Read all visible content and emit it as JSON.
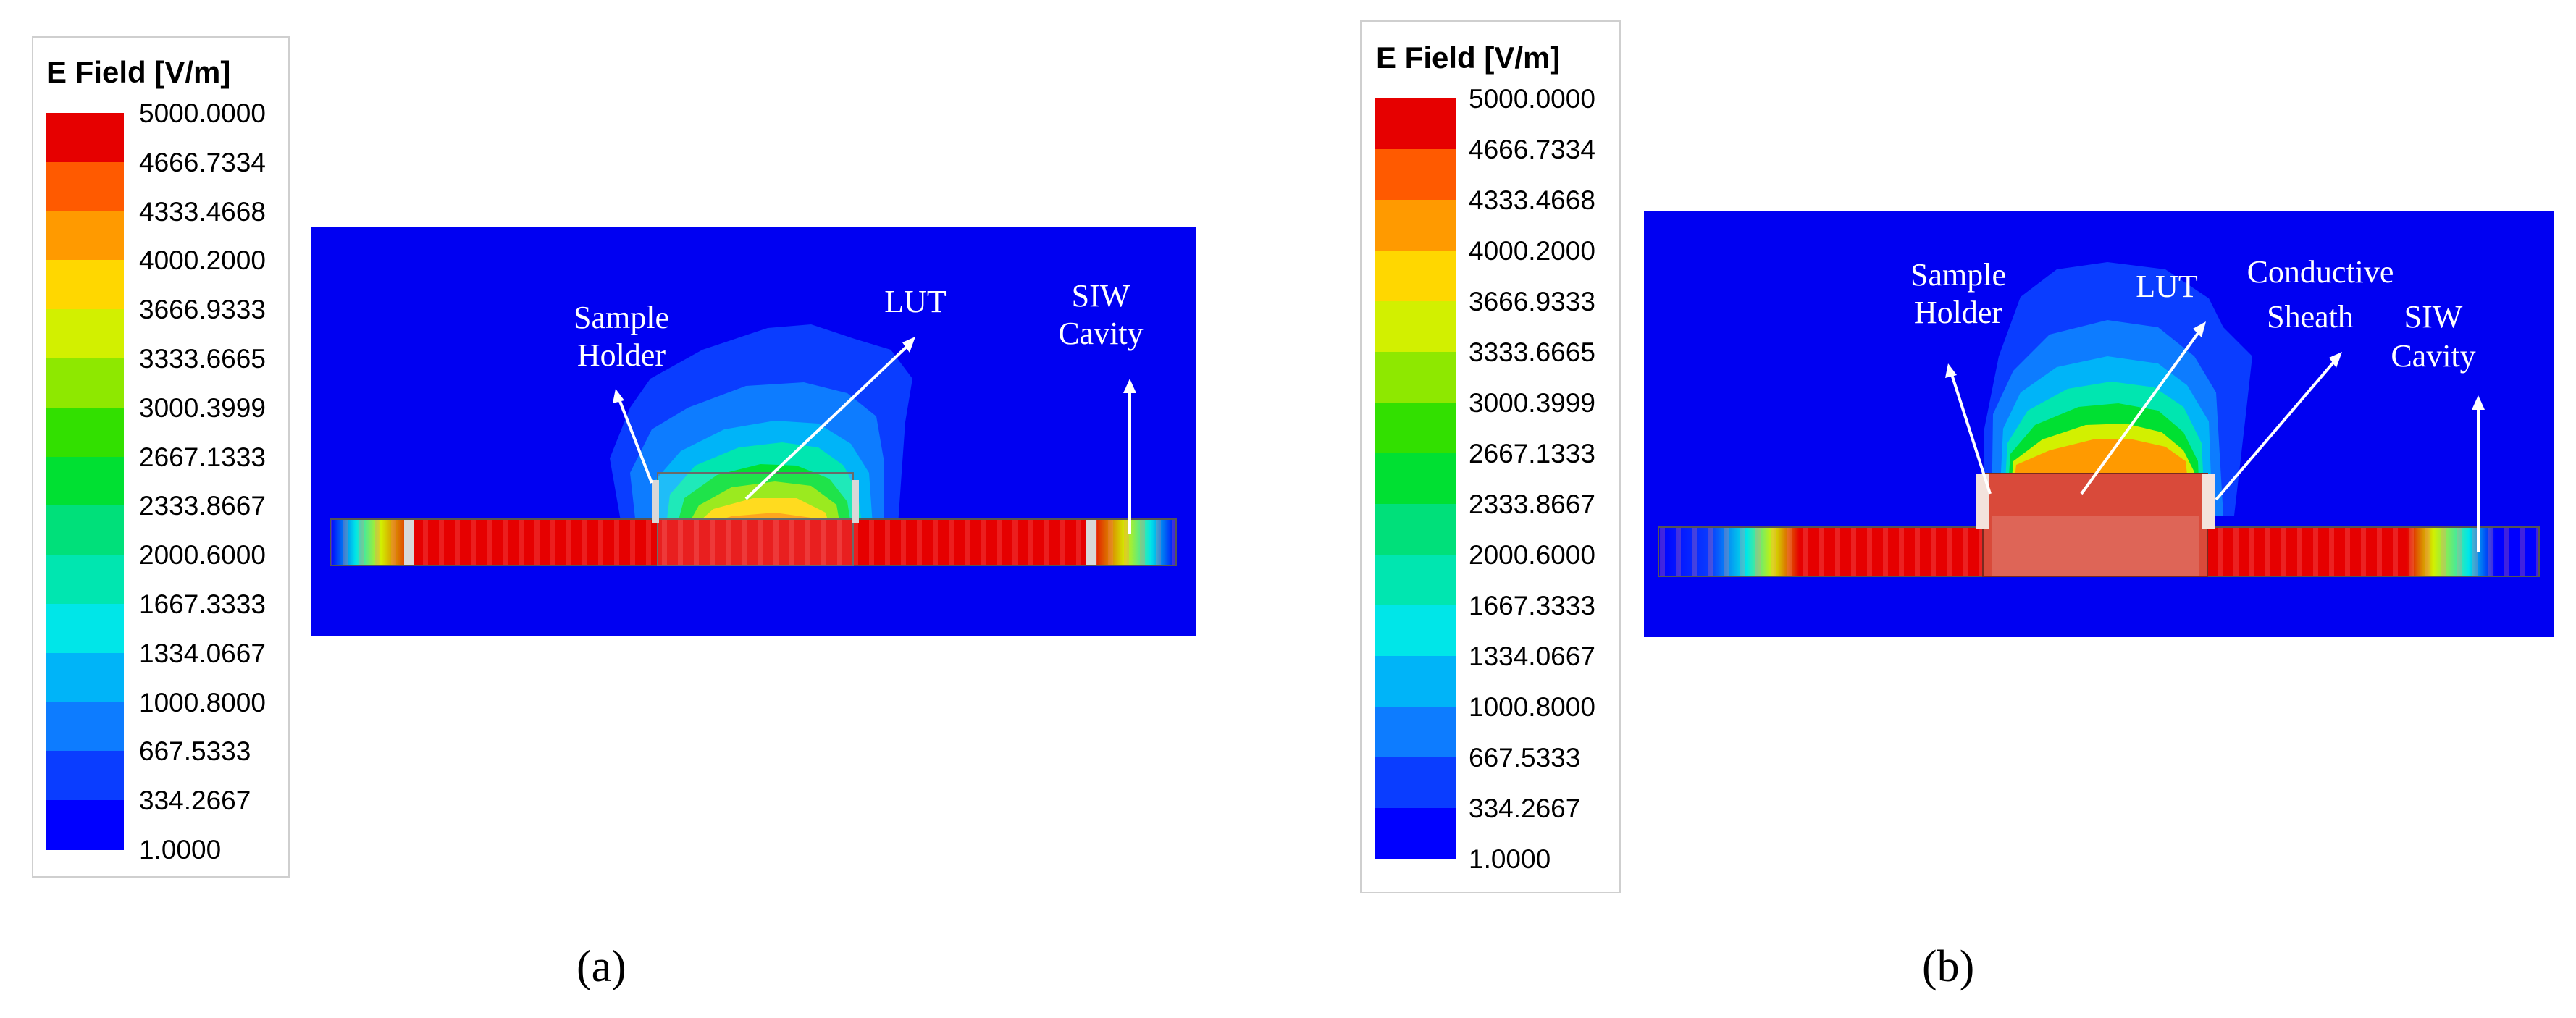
{
  "colors": {
    "background": "#0000f2",
    "scale": [
      "#0000ff",
      "#0a3dff",
      "#0d7cff",
      "#00b4f8",
      "#00e6e8",
      "#00e6b0",
      "#00e07a",
      "#00e032",
      "#32e000",
      "#8ee800",
      "#d2f000",
      "#ffd700",
      "#ff9a00",
      "#ff5a00",
      "#e60000"
    ]
  },
  "panels": [
    {
      "id": "a",
      "legend": {
        "title": "E Field [V/m]",
        "labels": [
          "5000.0000",
          "4666.7334",
          "4333.4668",
          "4000.2000",
          "3666.9333",
          "3333.6665",
          "3000.3999",
          "2667.1333",
          "2333.8667",
          "2000.6000",
          "1667.3333",
          "1334.0667",
          "1000.8000",
          "667.5333",
          "334.2667",
          "1.0000"
        ]
      },
      "annotations": {
        "sample_holder_line1": "Sample",
        "sample_holder_line2": "Holder",
        "lut": "LUT",
        "siw_line1": "SIW",
        "siw_line2": "Cavity"
      },
      "caption": "(a)"
    },
    {
      "id": "b",
      "legend": {
        "title": "E Field [V/m]",
        "labels": [
          "5000.0000",
          "4666.7334",
          "4333.4668",
          "4000.2000",
          "3666.9333",
          "3333.6665",
          "3000.3999",
          "2667.1333",
          "2333.8667",
          "2000.6000",
          "1667.3333",
          "1334.0667",
          "1000.8000",
          "667.5333",
          "334.2667",
          "1.0000"
        ]
      },
      "annotations": {
        "sample_holder_line1": "Sample",
        "sample_holder_line2": "Holder",
        "lut": "LUT",
        "sheath_line1": "Conductive",
        "sheath_line2": "Sheath",
        "siw_line1": "SIW",
        "siw_line2": "Cavity"
      },
      "caption": "(b)"
    }
  ]
}
